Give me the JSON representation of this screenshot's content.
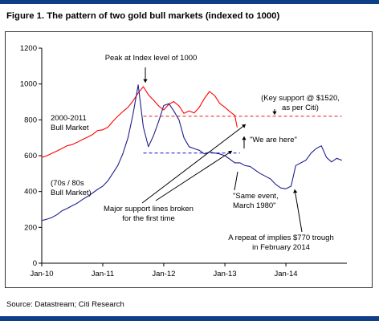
{
  "figure": {
    "title": "Figure 1. The pattern of two gold bull markets (indexed to 1000)",
    "source": "Source: Datastream; Citi Research"
  },
  "chart_data": {
    "type": "line",
    "title": "Figure 1. The pattern of two gold bull markets (indexed to 1000)",
    "xlabel": "",
    "ylabel": "",
    "ylim": [
      0,
      1200
    ],
    "yticks": [
      0,
      200,
      400,
      600,
      800,
      1000,
      1200
    ],
    "xticks": [
      "Jan-10",
      "Jan-11",
      "Jan-12",
      "Jan-13",
      "Jan-14"
    ],
    "grid": false,
    "colors": {
      "series_2000_2011": "#ff0000",
      "series_70s_80s": "#1f1f8f",
      "support_line": "#e31b1b",
      "old_support_line": "#2a2ad0",
      "axis": "#000000"
    },
    "series": [
      {
        "name": "2000-2011 Bull Market",
        "x": [
          "2010-01-01",
          "2010-02-01",
          "2010-03-01",
          "2010-04-01",
          "2010-05-01",
          "2010-06-01",
          "2010-07-01",
          "2010-08-01",
          "2010-09-01",
          "2010-10-01",
          "2010-11-01",
          "2010-12-01",
          "2011-01-01",
          "2011-02-01",
          "2011-03-01",
          "2011-04-01",
          "2011-05-01",
          "2011-06-01",
          "2011-07-01",
          "2011-08-01",
          "2011-09-01",
          "2011-10-01",
          "2011-11-01",
          "2011-12-01",
          "2012-01-01",
          "2012-02-01",
          "2012-03-01",
          "2012-04-01",
          "2012-05-01",
          "2012-06-01",
          "2012-07-01",
          "2012-08-01",
          "2012-09-01",
          "2012-10-01",
          "2012-11-01",
          "2012-12-01",
          "2013-01-01",
          "2013-02-01",
          "2013-03-01",
          "2013-03-15"
        ],
        "y": [
          590,
          600,
          612,
          626,
          640,
          655,
          662,
          675,
          690,
          703,
          718,
          740,
          744,
          759,
          790,
          820,
          846,
          870,
          905,
          950,
          985,
          940,
          910,
          878,
          855,
          888,
          902,
          878,
          836,
          850,
          838,
          870,
          920,
          958,
          935,
          892,
          870,
          845,
          825,
          760
        ]
      },
      {
        "name": "(70s / 80s Bull Market)",
        "x": [
          "2010-01-01",
          "2010-02-01",
          "2010-03-01",
          "2010-04-01",
          "2010-05-01",
          "2010-06-01",
          "2010-07-01",
          "2010-08-01",
          "2010-09-01",
          "2010-10-01",
          "2010-11-01",
          "2010-12-01",
          "2011-01-01",
          "2011-02-01",
          "2011-03-01",
          "2011-04-01",
          "2011-05-01",
          "2011-06-01",
          "2011-07-01",
          "2011-08-01",
          "2011-09-01",
          "2011-10-01",
          "2011-11-01",
          "2011-12-01",
          "2012-01-01",
          "2012-02-01",
          "2012-03-01",
          "2012-04-01",
          "2012-05-01",
          "2012-06-01",
          "2012-07-01",
          "2012-08-01",
          "2012-09-01",
          "2012-10-01",
          "2012-11-01",
          "2012-12-01",
          "2013-01-01",
          "2013-02-01",
          "2013-03-01",
          "2013-04-01",
          "2013-05-01",
          "2013-06-01",
          "2013-07-01",
          "2013-08-01",
          "2013-09-01",
          "2013-10-01",
          "2013-11-01",
          "2013-12-01",
          "2014-01-01",
          "2014-02-01",
          "2014-03-01",
          "2014-04-01",
          "2014-05-01",
          "2014-06-01",
          "2014-07-01",
          "2014-08-01",
          "2014-09-01",
          "2014-10-01",
          "2014-11-01",
          "2014-12-01"
        ],
        "y": [
          238,
          246,
          255,
          270,
          292,
          305,
          320,
          335,
          355,
          372,
          392,
          412,
          430,
          460,
          500,
          545,
          610,
          700,
          830,
          995,
          760,
          650,
          712,
          790,
          880,
          890,
          850,
          800,
          700,
          650,
          640,
          630,
          610,
          620,
          615,
          610,
          600,
          580,
          560,
          560,
          545,
          540,
          520,
          500,
          485,
          470,
          440,
          420,
          415,
          430,
          545,
          560,
          575,
          615,
          640,
          655,
          590,
          565,
          585,
          575
        ]
      }
    ],
    "reference_lines": [
      {
        "name": "key-support",
        "y": 820,
        "x_start": "2011-09-01",
        "x_end": "2014-12-01"
      },
      {
        "name": "old-support",
        "y": 615,
        "x_start": "2011-09-01",
        "x_end": "2013-04-01"
      }
    ],
    "annotations": [
      {
        "name": "peak",
        "text": "Peak at Index level of 1000"
      },
      {
        "name": "bull-2000",
        "lines": [
          "2000-2011",
          "Bull Market"
        ]
      },
      {
        "name": "bull-70s",
        "lines": [
          "(70s / 80s",
          "Bull Market)"
        ]
      },
      {
        "name": "key-support",
        "lines": [
          "(Key support @ $1520,",
          "as per Citi)"
        ]
      },
      {
        "name": "we-are-here",
        "text": "\"We are here\""
      },
      {
        "name": "same-event",
        "lines": [
          "\"Same event,",
          "March 1980\""
        ]
      },
      {
        "name": "support-broken",
        "lines": [
          "Major support lines broken",
          "for the first time"
        ]
      },
      {
        "name": "trough",
        "lines": [
          "A repeat of implies $770 trough",
          "in February 2014"
        ]
      }
    ]
  }
}
